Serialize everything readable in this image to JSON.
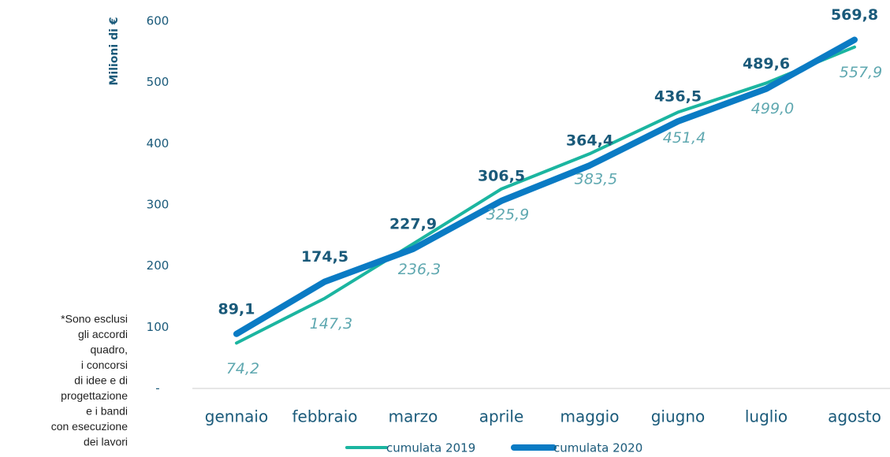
{
  "chart_data": {
    "type": "line",
    "y_label": "Milioni di €",
    "categories": [
      "gennaio",
      "febbraio",
      "marzo",
      "aprile",
      "maggio",
      "giugno",
      "luglio",
      "agosto"
    ],
    "series": [
      {
        "name": "cumulata 2019",
        "color": "#1bb5a0",
        "values": [
          74.2,
          147.3,
          236.3,
          325.9,
          383.5,
          451.4,
          499.0,
          557.9
        ],
        "value_labels": [
          "74,2",
          "147,3",
          "236,3",
          "325,9",
          "383,5",
          "451,4",
          "499,0",
          "557,9"
        ]
      },
      {
        "name": "cumulata 2020",
        "color": "#0a7bc4",
        "values": [
          89.1,
          174.5,
          227.9,
          306.5,
          364.4,
          436.5,
          489.6,
          569.8
        ],
        "value_labels": [
          "89,1",
          "174,5",
          "227,9",
          "306,5",
          "364,4",
          "436,5",
          "489,6",
          "569,8"
        ]
      }
    ],
    "ylim": [
      0,
      600
    ],
    "yticks": [
      {
        "value": 0,
        "label": "-"
      },
      100,
      200,
      300,
      400,
      500,
      600
    ],
    "legend": "bottom",
    "footnote_lines": [
      "*Sono esclusi",
      "gli accordi",
      "quadro,",
      "i concorsi",
      "di idee e di",
      "progettazione",
      "e i bandi",
      "con esecuzione",
      "dei lavori"
    ]
  }
}
